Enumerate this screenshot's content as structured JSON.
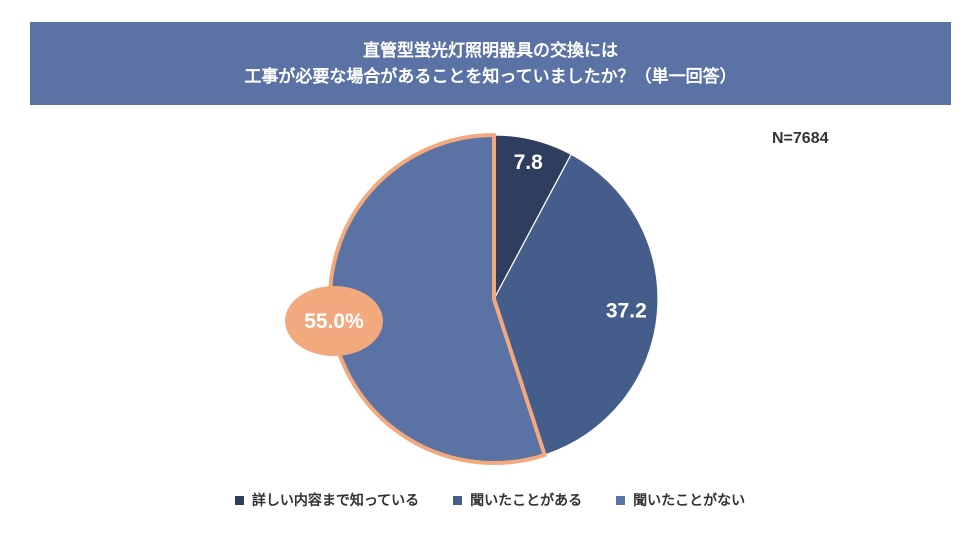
{
  "header": {
    "title_line1": "直管型蛍光灯照明器具の交換には",
    "title_line2": "工事が必要な場合があることを知っていましたか？（単一回答）"
  },
  "sample_size": "N=7684",
  "chart_data": {
    "type": "pie",
    "title": "直管型蛍光灯照明器具の交換には工事が必要な場合があることを知っていましたか？（単一回答）",
    "unit": "%",
    "start": "12 o'clock, clockwise",
    "slices": [
      {
        "label": "詳しい内容まで知っている",
        "value": 7.8,
        "display": "7.8",
        "color": "#2f3e5f"
      },
      {
        "label": "聞いたことがある",
        "value": 37.2,
        "display": "37.2",
        "color": "#455d8b"
      },
      {
        "label": "聞いたことがない",
        "value": 55.0,
        "display": "55.0%",
        "color": "#5a72a4",
        "highlight": true,
        "highlight_color": "#f2a97e"
      }
    ],
    "legend_position": "bottom-center"
  }
}
